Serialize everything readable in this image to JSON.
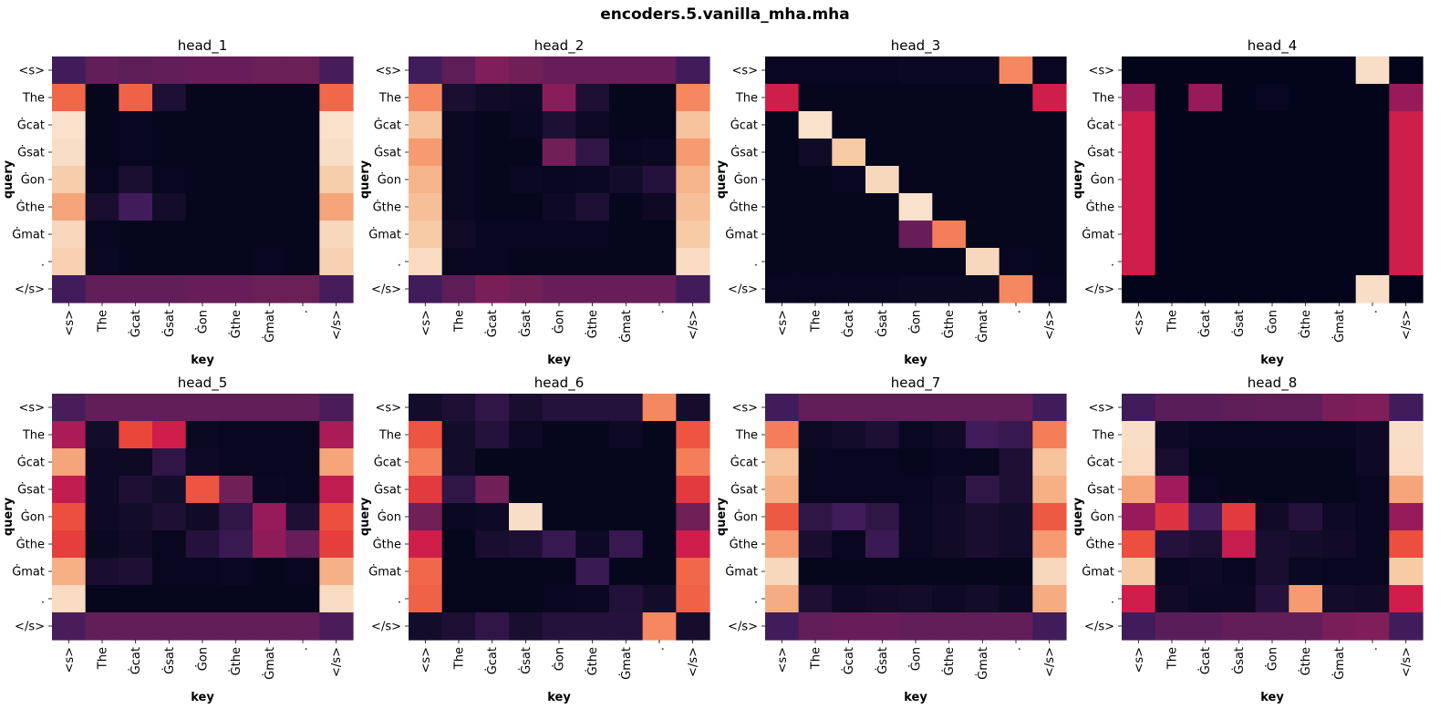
{
  "title": "encoders.5.vanilla_mha.mha",
  "tokens": [
    "<s>",
    "The",
    "Ġcat",
    "Ġsat",
    "Ġon",
    "Ġthe",
    "Ġmat",
    ".",
    "</s>"
  ],
  "xlabel": "key",
  "ylabel": "query",
  "chart_data": {
    "type": "heatmap",
    "colormap": "rocket",
    "vmin": 0,
    "vmax": 1,
    "panels": [
      {
        "title": "head_1",
        "values": [
          [
            0.2,
            0.27,
            0.26,
            0.27,
            0.28,
            0.28,
            0.29,
            0.29,
            0.21
          ],
          [
            0.67,
            0.01,
            0.66,
            0.1,
            0.01,
            0.01,
            0.01,
            0.01,
            0.67
          ],
          [
            0.97,
            0.01,
            0.02,
            0.01,
            0.01,
            0.01,
            0.01,
            0.01,
            0.97
          ],
          [
            0.96,
            0.01,
            0.02,
            0.01,
            0.01,
            0.01,
            0.01,
            0.01,
            0.96
          ],
          [
            0.91,
            0.02,
            0.09,
            0.02,
            0.01,
            0.01,
            0.01,
            0.01,
            0.91
          ],
          [
            0.8,
            0.08,
            0.2,
            0.06,
            0.01,
            0.01,
            0.01,
            0.01,
            0.8
          ],
          [
            0.94,
            0.02,
            0.01,
            0.01,
            0.01,
            0.01,
            0.01,
            0.01,
            0.94
          ],
          [
            0.92,
            0.03,
            0.01,
            0.01,
            0.01,
            0.01,
            0.02,
            0.01,
            0.92
          ],
          [
            0.2,
            0.27,
            0.27,
            0.27,
            0.28,
            0.28,
            0.29,
            0.29,
            0.21
          ]
        ]
      },
      {
        "title": "head_2",
        "values": [
          [
            0.2,
            0.26,
            0.33,
            0.3,
            0.28,
            0.28,
            0.28,
            0.28,
            0.2
          ],
          [
            0.74,
            0.09,
            0.05,
            0.04,
            0.35,
            0.1,
            0.01,
            0.01,
            0.74
          ],
          [
            0.88,
            0.03,
            0.01,
            0.03,
            0.1,
            0.04,
            0.01,
            0.01,
            0.88
          ],
          [
            0.78,
            0.03,
            0.01,
            0.01,
            0.3,
            0.15,
            0.02,
            0.03,
            0.78
          ],
          [
            0.84,
            0.03,
            0.01,
            0.03,
            0.02,
            0.03,
            0.06,
            0.12,
            0.84
          ],
          [
            0.87,
            0.03,
            0.01,
            0.01,
            0.04,
            0.1,
            0.01,
            0.04,
            0.87
          ],
          [
            0.9,
            0.05,
            0.02,
            0.02,
            0.02,
            0.02,
            0.01,
            0.01,
            0.9
          ],
          [
            0.95,
            0.02,
            0.02,
            0.01,
            0.01,
            0.01,
            0.01,
            0.01,
            0.95
          ],
          [
            0.2,
            0.26,
            0.32,
            0.3,
            0.28,
            0.28,
            0.28,
            0.28,
            0.2
          ]
        ]
      },
      {
        "title": "head_3",
        "values": [
          [
            0.02,
            0.02,
            0.02,
            0.02,
            0.03,
            0.03,
            0.03,
            0.74,
            0.02
          ],
          [
            0.5,
            0.01,
            0.01,
            0.01,
            0.01,
            0.01,
            0.01,
            0.01,
            0.5
          ],
          [
            0.01,
            0.97,
            0.01,
            0.01,
            0.01,
            0.01,
            0.01,
            0.01,
            0.01
          ],
          [
            0.01,
            0.05,
            0.9,
            0.01,
            0.01,
            0.01,
            0.01,
            0.01,
            0.01
          ],
          [
            0.01,
            0.01,
            0.02,
            0.94,
            0.01,
            0.01,
            0.01,
            0.01,
            0.01
          ],
          [
            0.01,
            0.01,
            0.01,
            0.01,
            0.97,
            0.01,
            0.01,
            0.01,
            0.01
          ],
          [
            0.01,
            0.01,
            0.01,
            0.01,
            0.28,
            0.72,
            0.01,
            0.01,
            0.01
          ],
          [
            0.01,
            0.01,
            0.01,
            0.01,
            0.01,
            0.01,
            0.94,
            0.02,
            0.01
          ],
          [
            0.02,
            0.02,
            0.02,
            0.02,
            0.03,
            0.03,
            0.03,
            0.74,
            0.02
          ]
        ]
      },
      {
        "title": "head_4",
        "values": [
          [
            0.0,
            0.0,
            0.0,
            0.0,
            0.0,
            0.0,
            0.0,
            0.96,
            0.0
          ],
          [
            0.38,
            0.0,
            0.38,
            0.0,
            0.02,
            0.0,
            0.0,
            0.0,
            0.38
          ],
          [
            0.5,
            0.0,
            0.0,
            0.0,
            0.0,
            0.0,
            0.0,
            0.0,
            0.5
          ],
          [
            0.5,
            0.0,
            0.0,
            0.0,
            0.0,
            0.0,
            0.0,
            0.0,
            0.5
          ],
          [
            0.5,
            0.0,
            0.0,
            0.0,
            0.0,
            0.0,
            0.0,
            0.0,
            0.5
          ],
          [
            0.5,
            0.0,
            0.0,
            0.0,
            0.0,
            0.0,
            0.0,
            0.0,
            0.5
          ],
          [
            0.5,
            0.0,
            0.0,
            0.0,
            0.0,
            0.0,
            0.0,
            0.0,
            0.5
          ],
          [
            0.5,
            0.0,
            0.0,
            0.0,
            0.0,
            0.0,
            0.0,
            0.0,
            0.5
          ],
          [
            0.0,
            0.0,
            0.0,
            0.0,
            0.0,
            0.0,
            0.0,
            0.96,
            0.0
          ]
        ]
      },
      {
        "title": "head_5",
        "values": [
          [
            0.22,
            0.27,
            0.27,
            0.27,
            0.27,
            0.27,
            0.27,
            0.27,
            0.22
          ],
          [
            0.42,
            0.06,
            0.6,
            0.5,
            0.03,
            0.02,
            0.02,
            0.02,
            0.42
          ],
          [
            0.8,
            0.04,
            0.04,
            0.15,
            0.04,
            0.02,
            0.02,
            0.02,
            0.8
          ],
          [
            0.47,
            0.04,
            0.1,
            0.06,
            0.63,
            0.3,
            0.03,
            0.02,
            0.47
          ],
          [
            0.62,
            0.04,
            0.06,
            0.1,
            0.05,
            0.15,
            0.38,
            0.1,
            0.62
          ],
          [
            0.58,
            0.03,
            0.05,
            0.02,
            0.12,
            0.18,
            0.36,
            0.28,
            0.58
          ],
          [
            0.83,
            0.08,
            0.1,
            0.02,
            0.02,
            0.03,
            0.01,
            0.02,
            0.83
          ],
          [
            0.95,
            0.01,
            0.01,
            0.01,
            0.01,
            0.01,
            0.01,
            0.01,
            0.95
          ],
          [
            0.22,
            0.27,
            0.27,
            0.27,
            0.27,
            0.27,
            0.27,
            0.27,
            0.22
          ]
        ]
      },
      {
        "title": "head_6",
        "values": [
          [
            0.06,
            0.1,
            0.15,
            0.08,
            0.12,
            0.12,
            0.12,
            0.74,
            0.07
          ],
          [
            0.63,
            0.06,
            0.12,
            0.04,
            0.01,
            0.01,
            0.04,
            0.01,
            0.63
          ],
          [
            0.72,
            0.06,
            0.01,
            0.01,
            0.01,
            0.01,
            0.01,
            0.01,
            0.72
          ],
          [
            0.57,
            0.15,
            0.3,
            0.01,
            0.01,
            0.01,
            0.01,
            0.01,
            0.57
          ],
          [
            0.3,
            0.03,
            0.04,
            0.96,
            0.01,
            0.01,
            0.01,
            0.01,
            0.3
          ],
          [
            0.5,
            0.01,
            0.08,
            0.1,
            0.17,
            0.04,
            0.17,
            0.01,
            0.5
          ],
          [
            0.67,
            0.01,
            0.01,
            0.01,
            0.01,
            0.18,
            0.01,
            0.01,
            0.67
          ],
          [
            0.66,
            0.01,
            0.01,
            0.01,
            0.02,
            0.03,
            0.11,
            0.06,
            0.66
          ],
          [
            0.06,
            0.1,
            0.15,
            0.08,
            0.12,
            0.12,
            0.12,
            0.74,
            0.07
          ]
        ]
      },
      {
        "title": "head_7",
        "values": [
          [
            0.2,
            0.27,
            0.27,
            0.27,
            0.27,
            0.27,
            0.27,
            0.27,
            0.2
          ],
          [
            0.72,
            0.04,
            0.06,
            0.1,
            0.03,
            0.05,
            0.2,
            0.17,
            0.72
          ],
          [
            0.88,
            0.02,
            0.02,
            0.02,
            0.01,
            0.02,
            0.02,
            0.1,
            0.88
          ],
          [
            0.83,
            0.02,
            0.02,
            0.02,
            0.02,
            0.04,
            0.15,
            0.1,
            0.83
          ],
          [
            0.64,
            0.15,
            0.2,
            0.15,
            0.03,
            0.05,
            0.08,
            0.06,
            0.64
          ],
          [
            0.78,
            0.08,
            0.02,
            0.18,
            0.03,
            0.05,
            0.08,
            0.06,
            0.78
          ],
          [
            0.94,
            0.01,
            0.01,
            0.01,
            0.01,
            0.01,
            0.01,
            0.01,
            0.94
          ],
          [
            0.82,
            0.1,
            0.04,
            0.05,
            0.06,
            0.04,
            0.06,
            0.03,
            0.82
          ],
          [
            0.2,
            0.27,
            0.28,
            0.28,
            0.27,
            0.27,
            0.27,
            0.27,
            0.2
          ]
        ]
      },
      {
        "title": "head_8",
        "values": [
          [
            0.2,
            0.25,
            0.25,
            0.26,
            0.27,
            0.27,
            0.32,
            0.33,
            0.2
          ],
          [
            0.96,
            0.04,
            0.02,
            0.02,
            0.02,
            0.02,
            0.02,
            0.04,
            0.96
          ],
          [
            0.95,
            0.08,
            0.01,
            0.01,
            0.01,
            0.01,
            0.01,
            0.04,
            0.95
          ],
          [
            0.8,
            0.4,
            0.02,
            0.01,
            0.01,
            0.01,
            0.01,
            0.02,
            0.8
          ],
          [
            0.38,
            0.55,
            0.2,
            0.57,
            0.05,
            0.12,
            0.04,
            0.02,
            0.38
          ],
          [
            0.62,
            0.12,
            0.1,
            0.48,
            0.08,
            0.06,
            0.05,
            0.02,
            0.62
          ],
          [
            0.9,
            0.03,
            0.04,
            0.02,
            0.08,
            0.03,
            0.02,
            0.02,
            0.9
          ],
          [
            0.5,
            0.05,
            0.03,
            0.03,
            0.12,
            0.78,
            0.06,
            0.05,
            0.5
          ],
          [
            0.2,
            0.25,
            0.25,
            0.27,
            0.27,
            0.27,
            0.32,
            0.33,
            0.2
          ]
        ]
      }
    ]
  }
}
